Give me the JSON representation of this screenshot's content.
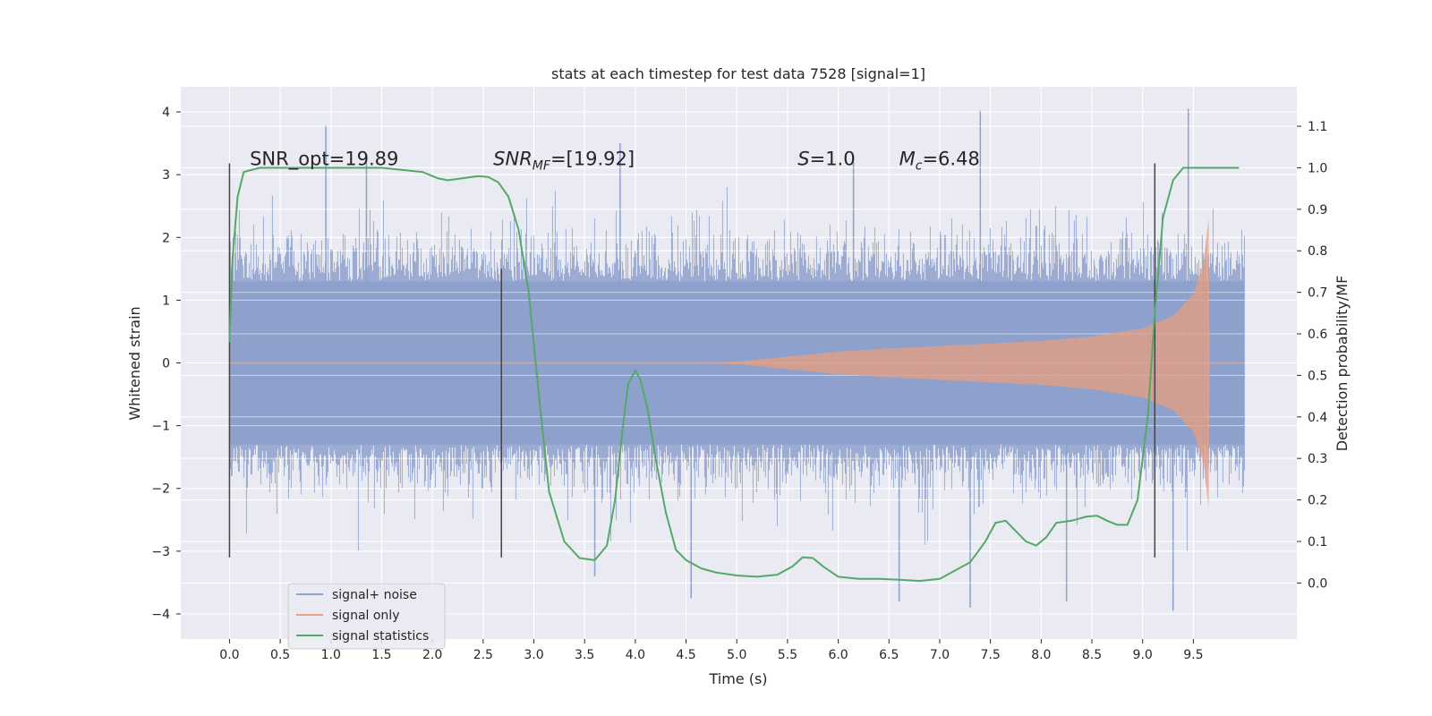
{
  "chart_data": {
    "type": "line",
    "title": "stats at each timestep for test data 7528 [signal=1]",
    "xlabel": "Time (s)",
    "ylabel": "Whitened strain",
    "y2label": "Detection probability/MF",
    "xlim": [
      -0.48,
      10.52
    ],
    "ylim": [
      -4.4,
      4.4
    ],
    "y2lim": [
      -0.135,
      1.195
    ],
    "xticks": [
      "0.0",
      "0.5",
      "1.0",
      "1.5",
      "2.0",
      "2.5",
      "3.0",
      "3.5",
      "4.0",
      "4.5",
      "5.0",
      "5.5",
      "6.0",
      "6.5",
      "7.0",
      "7.5",
      "8.0",
      "8.5",
      "9.0",
      "9.5"
    ],
    "yticks": [
      "4",
      "3",
      "2",
      "1",
      "0",
      "−1",
      "−2",
      "−3",
      "−4"
    ],
    "y2ticks": [
      "1.1",
      "1.0",
      "0.9",
      "0.8",
      "0.7",
      "0.6",
      "0.5",
      "0.4",
      "0.3",
      "0.2",
      "0.1",
      "0.0"
    ],
    "grid": true,
    "legend_position": "lower-left",
    "colors": {
      "noise": "#8da0cb",
      "signal": "#e5a286",
      "stats": "#55a868",
      "vline": "#444444",
      "background": "#eaeaf2",
      "grid": "#ffffff"
    },
    "series": [
      {
        "name": "signal+ noise",
        "kind": "noise-band",
        "t_range": [
          0.0,
          10.0
        ],
        "typical_abs": 1.3,
        "extreme_max": 4.05,
        "extreme_min": -3.95
      },
      {
        "name": "signal only",
        "kind": "chirp",
        "envelope": {
          "t": [
            0.0,
            4.5,
            5.0,
            5.5,
            6.0,
            6.5,
            7.0,
            7.5,
            8.0,
            8.5,
            9.0,
            9.3,
            9.5,
            9.6,
            9.65,
            9.66,
            10.0
          ],
          "amp": [
            0.0,
            0.0,
            0.02,
            0.1,
            0.18,
            0.23,
            0.27,
            0.31,
            0.35,
            0.42,
            0.55,
            0.75,
            1.1,
            1.6,
            2.3,
            0.0,
            0.0
          ]
        }
      },
      {
        "name": "signal statistics",
        "kind": "line",
        "axis": "right",
        "x": [
          0.0,
          0.03,
          0.08,
          0.14,
          0.3,
          0.6,
          1.0,
          1.5,
          1.9,
          2.05,
          2.15,
          2.3,
          2.45,
          2.55,
          2.65,
          2.75,
          2.85,
          2.95,
          3.05,
          3.15,
          3.3,
          3.45,
          3.6,
          3.72,
          3.8,
          3.87,
          3.93,
          4.0,
          4.05,
          4.12,
          4.2,
          4.3,
          4.4,
          4.5,
          4.65,
          4.8,
          5.0,
          5.2,
          5.4,
          5.55,
          5.65,
          5.75,
          5.85,
          6.0,
          6.2,
          6.4,
          6.6,
          6.8,
          7.0,
          7.15,
          7.3,
          7.45,
          7.55,
          7.65,
          7.75,
          7.85,
          7.95,
          8.05,
          8.15,
          8.3,
          8.45,
          8.55,
          8.65,
          8.75,
          8.85,
          8.95,
          9.05,
          9.12,
          9.2,
          9.3,
          9.4,
          9.5,
          9.7,
          9.95
        ],
        "y": [
          0.58,
          0.78,
          0.93,
          0.99,
          1.0,
          1.0,
          1.0,
          1.0,
          0.99,
          0.975,
          0.97,
          0.975,
          0.98,
          0.978,
          0.965,
          0.93,
          0.85,
          0.7,
          0.45,
          0.22,
          0.1,
          0.06,
          0.055,
          0.09,
          0.2,
          0.36,
          0.48,
          0.512,
          0.49,
          0.42,
          0.3,
          0.17,
          0.08,
          0.055,
          0.035,
          0.025,
          0.018,
          0.015,
          0.02,
          0.04,
          0.062,
          0.06,
          0.04,
          0.015,
          0.01,
          0.01,
          0.008,
          0.005,
          0.01,
          0.03,
          0.05,
          0.1,
          0.145,
          0.15,
          0.125,
          0.1,
          0.09,
          0.11,
          0.145,
          0.15,
          0.16,
          0.162,
          0.15,
          0.14,
          0.14,
          0.2,
          0.4,
          0.65,
          0.88,
          0.97,
          1.0,
          1.0,
          1.0,
          1.0
        ]
      }
    ],
    "vertical_lines": [
      {
        "x": 0.0,
        "ymin": -3.1,
        "ymax": 3.18
      },
      {
        "x": 2.68,
        "ymin": -3.1,
        "ymax": 1.5
      },
      {
        "x": 9.12,
        "ymin": -3.1,
        "ymax": 3.18
      }
    ],
    "annotations": [
      {
        "text": "SNR_opt=19.89",
        "x": 0.2,
        "y": 3.15
      },
      {
        "text": "SNR",
        "sub": "MF",
        "suffix": "=[19.92]",
        "x": 2.6,
        "y": 3.15
      },
      {
        "text": "S",
        "suffix": "=1.0",
        "x": 5.6,
        "y": 3.15
      },
      {
        "text": "M",
        "sub": "c",
        "suffix": "=6.48",
        "x": 6.6,
        "y": 3.15
      }
    ]
  }
}
